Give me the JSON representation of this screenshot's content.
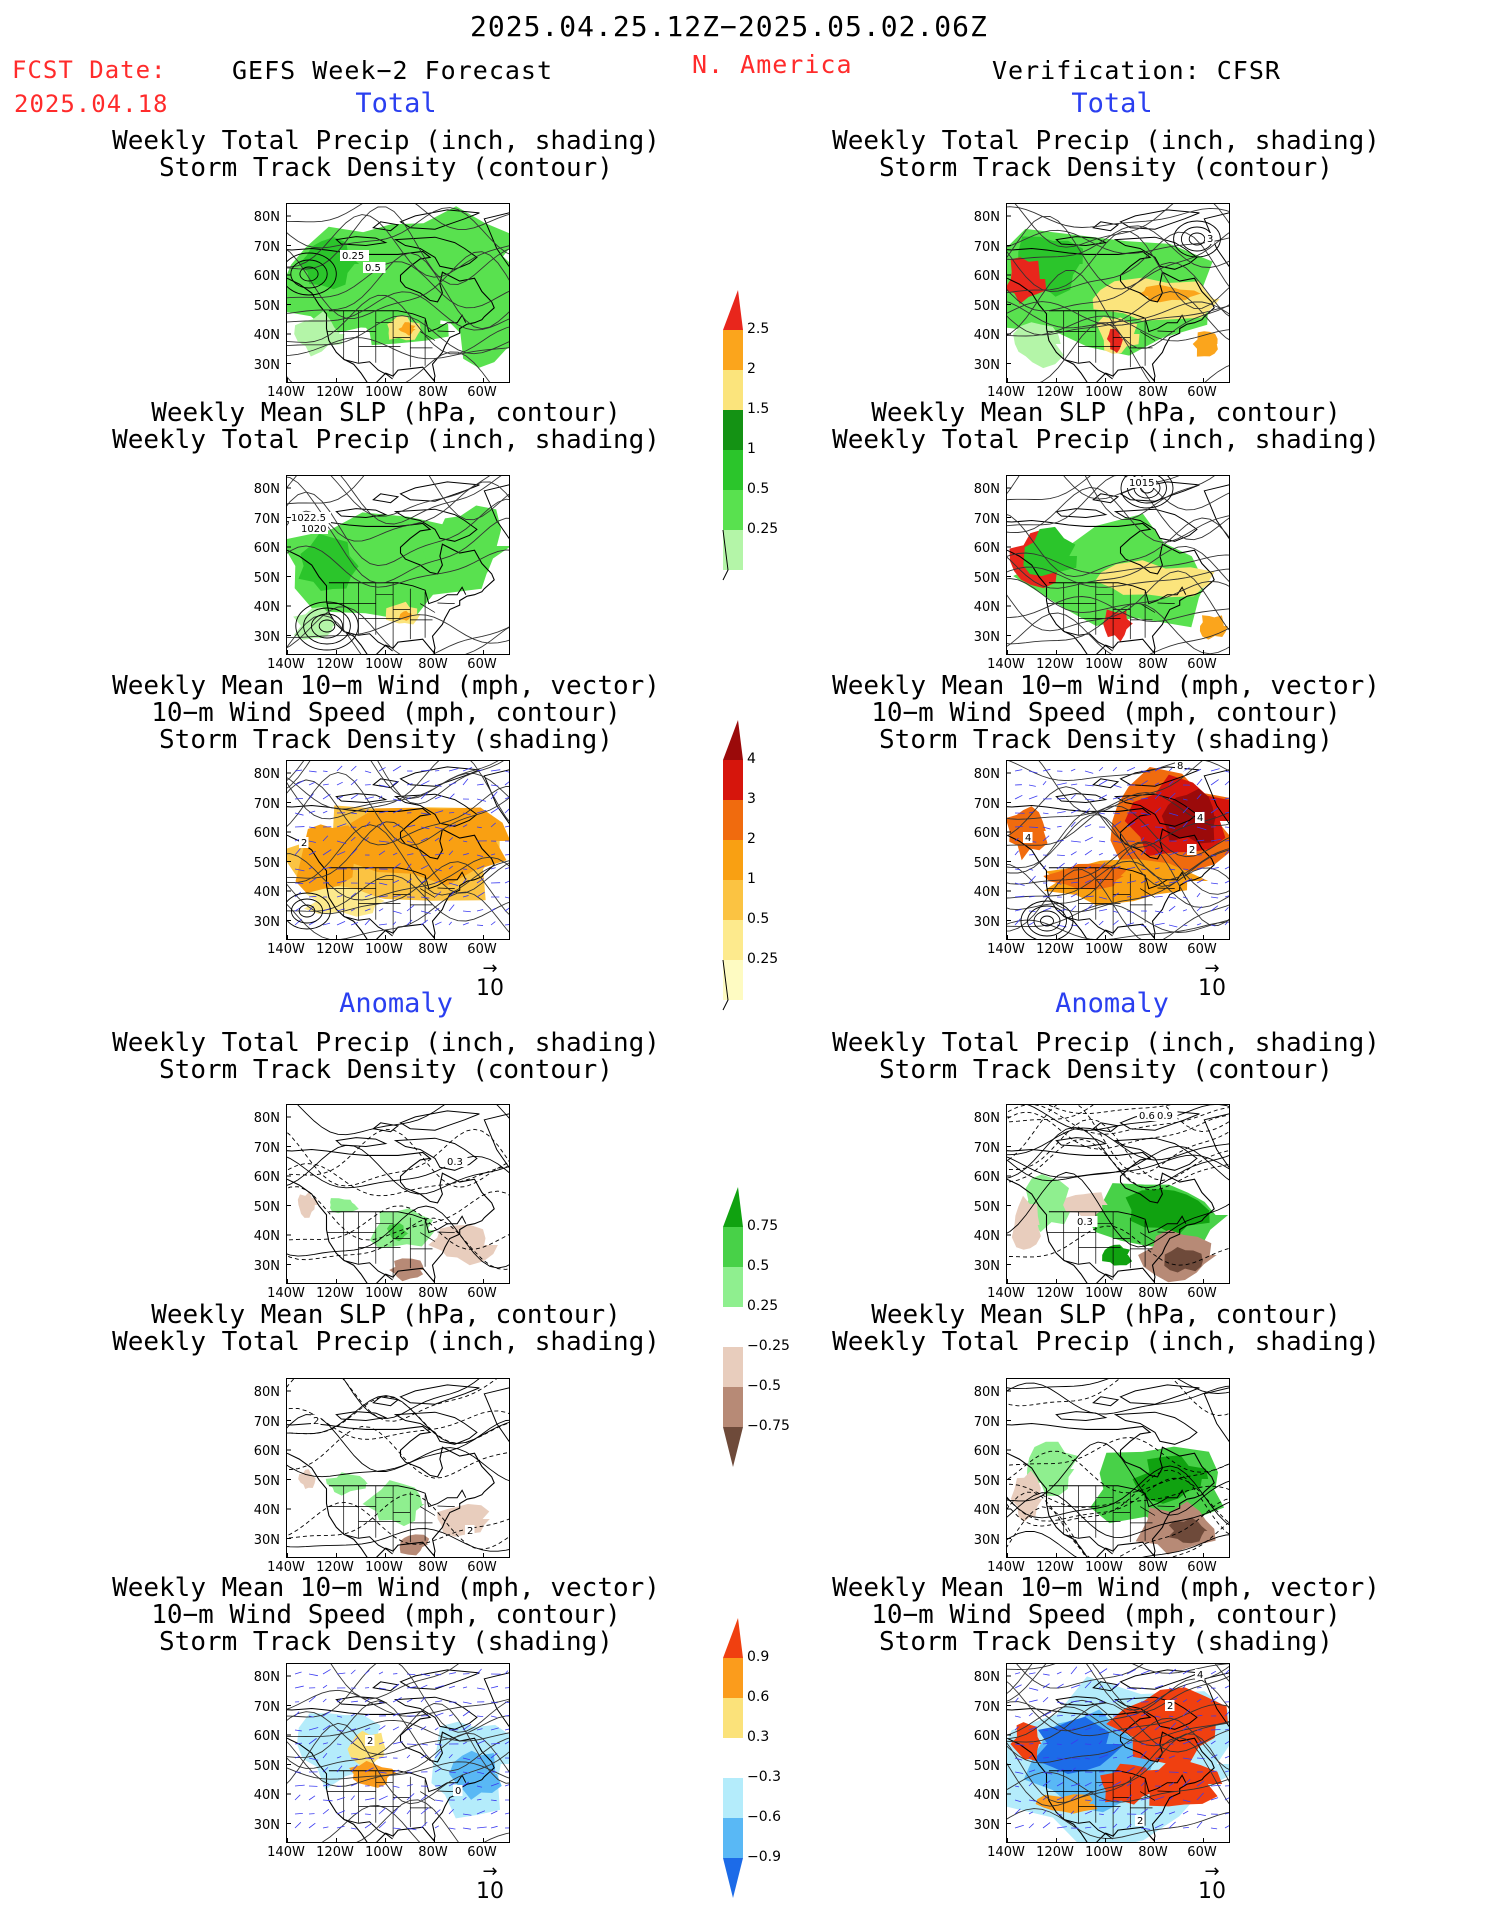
{
  "header": {
    "date_range": "2025.04.25.12Z−2025.05.02.06Z",
    "fcst_date_label": "FCST Date:",
    "fcst_date_value": "2025.04.18",
    "forecast_label": "GEFS Week−2 Forecast",
    "region": "N. America",
    "verification_label": "Verification: CFSR"
  },
  "sections": {
    "total": "Total",
    "anomaly": "Anomaly"
  },
  "captions": {
    "precip_track": [
      "Weekly Total Precip (inch, shading)",
      "Storm Track Density (contour)"
    ],
    "slp_precip": [
      "Weekly Mean SLP (hPa, contour)",
      "Weekly Total Precip (inch, shading)"
    ],
    "wind_track": [
      "Weekly Mean 10−m Wind (mph, vector)",
      "10−m Wind Speed (mph, contour)",
      "Storm Track Density (shading)"
    ]
  },
  "axes": {
    "lat_ticks": [
      "80N",
      "70N",
      "60N",
      "50N",
      "40N",
      "30N"
    ],
    "lon_ticks": [
      "140W",
      "120W",
      "100W",
      "80W",
      "60W"
    ]
  },
  "vector_reference": "10",
  "colorbars": {
    "precip_total": {
      "levels": [
        "0.25",
        "0.5",
        "1",
        "1.5",
        "2",
        "2.5"
      ],
      "colors": [
        "#b4f5a8",
        "#59e14f",
        "#2bc52b",
        "#149214",
        "#fbe47c",
        "#fba51c",
        "#e8261c"
      ]
    },
    "track_total": {
      "levels": [
        "0.25",
        "0.5",
        "1",
        "2",
        "3",
        "4"
      ],
      "colors": [
        "#fefbc2",
        "#fdea8d",
        "#fbc342",
        "#f9a012",
        "#f06b0e",
        "#d6150c",
        "#9b0a0a"
      ]
    },
    "precip_anom": {
      "levels": [
        "0.75",
        "0.5",
        "0.25",
        "−0.25",
        "−0.5",
        "−0.75"
      ],
      "colors": [
        "#10a210",
        "#48d148",
        "#8fef8f",
        "#ffffff",
        "#e8cdbd",
        "#b78a76",
        "#6e4a3a"
      ]
    },
    "track_anom": {
      "levels": [
        "0.9",
        "0.6",
        "0.3",
        "−0.3",
        "−0.6",
        "−0.9"
      ],
      "colors": [
        "#f04010",
        "#fb9c1c",
        "#fbe27a",
        "#ffffff",
        "#b4ecfb",
        "#59b8f5",
        "#1c6be8"
      ]
    }
  },
  "contour_labels": {
    "tl1": [
      "0.25",
      "0.5"
    ],
    "tr1": [
      "3"
    ],
    "tl2": [
      "1022.5",
      "1020"
    ],
    "tr2": [
      "1015"
    ],
    "tl3": [
      "2"
    ],
    "tr3": [
      "4",
      "4",
      "2",
      "8"
    ],
    "bl1": [
      "0.3"
    ],
    "br1": [
      "0.6",
      "0.9",
      "0.3"
    ],
    "bl2": [
      "2",
      "2"
    ],
    "bl3": [
      "2",
      "0"
    ],
    "br3": [
      "4",
      "2",
      "2"
    ]
  }
}
